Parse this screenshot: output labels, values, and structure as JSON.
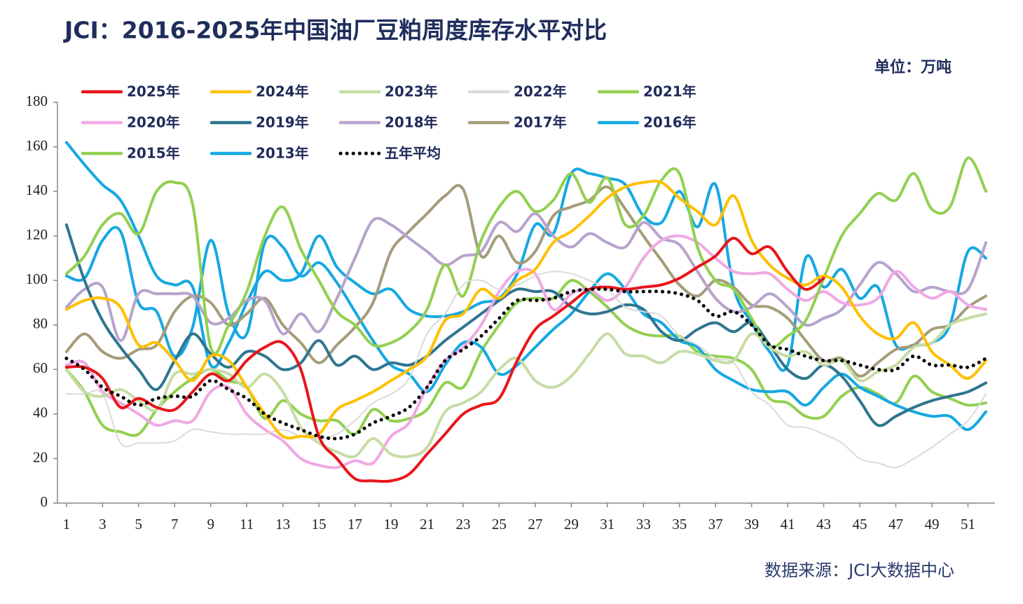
{
  "chart_data": {
    "type": "line",
    "title": "JCI：2016-2025年中国油厂豆粕周度库存水平对比",
    "unit": "单位：万吨",
    "source": "数据来源：JCI大数据中心",
    "x": [
      1,
      2,
      3,
      4,
      5,
      6,
      7,
      8,
      9,
      10,
      11,
      12,
      13,
      14,
      15,
      16,
      17,
      18,
      19,
      20,
      21,
      22,
      23,
      24,
      25,
      26,
      27,
      28,
      29,
      30,
      31,
      32,
      33,
      34,
      35,
      36,
      37,
      38,
      39,
      40,
      41,
      42,
      43,
      44,
      45,
      46,
      47,
      48,
      49,
      50,
      51,
      52
    ],
    "xlim": [
      0.5,
      52.5
    ],
    "xticks": [
      1,
      3,
      5,
      7,
      9,
      11,
      13,
      15,
      17,
      19,
      21,
      23,
      25,
      27,
      29,
      31,
      33,
      35,
      37,
      39,
      41,
      43,
      45,
      47,
      49,
      51
    ],
    "ylim": [
      0,
      180
    ],
    "yticks": [
      0,
      20,
      40,
      60,
      80,
      100,
      120,
      140,
      160,
      180
    ],
    "grid": false,
    "series": [
      {
        "name": "2025年",
        "color": "#e8161b",
        "values": [
          61,
          61,
          56,
          43,
          47,
          43,
          42,
          50,
          58,
          55,
          64,
          70,
          72,
          60,
          30,
          20,
          11,
          10,
          10,
          13,
          22,
          31,
          40,
          44,
          47,
          64,
          78,
          84,
          90,
          96,
          97,
          96,
          97,
          98,
          101,
          106,
          111,
          119,
          112,
          115,
          104,
          96,
          101,
          null,
          null,
          null,
          null,
          null,
          null,
          null,
          null,
          null
        ]
      },
      {
        "name": "2024年",
        "color": "#ffc000",
        "values": [
          87,
          91,
          92,
          88,
          71,
          72,
          64,
          55,
          66,
          64,
          52,
          40,
          30,
          30,
          31,
          42,
          46,
          50,
          55,
          60,
          66,
          82,
          85,
          96,
          92,
          100,
          105,
          117,
          122,
          129,
          137,
          142,
          144,
          144,
          137,
          131,
          125,
          138,
          118,
          107,
          101,
          98,
          102,
          97,
          84,
          76,
          74,
          81,
          68,
          62,
          56,
          64
        ]
      },
      {
        "name": "2023年",
        "color": "#c6dca4",
        "values": [
          60,
          50,
          48,
          51,
          46,
          42,
          58,
          58,
          60,
          58,
          52,
          58,
          50,
          34,
          27,
          23,
          21,
          29,
          22,
          21,
          25,
          41,
          45,
          50,
          60,
          65,
          55,
          52,
          57,
          67,
          76,
          67,
          66,
          63,
          68,
          67,
          64,
          64,
          76,
          70,
          66,
          68,
          62,
          64,
          55,
          59,
          62,
          70,
          72,
          80,
          83,
          85
        ]
      },
      {
        "name": "2022年",
        "color": "#dadada",
        "values": [
          49,
          49,
          49,
          27,
          27,
          27,
          28,
          33,
          32,
          31,
          31,
          31,
          33,
          30,
          29,
          31,
          37,
          45,
          49,
          56,
          76,
          85,
          98,
          100,
          96,
          98,
          102,
          104,
          103,
          100,
          96,
          88,
          86,
          84,
          75,
          71,
          65,
          63,
          50,
          44,
          35,
          34,
          31,
          27,
          20,
          18,
          16,
          20,
          25,
          31,
          37,
          49
        ]
      },
      {
        "name": "2021年",
        "color": "#92d050",
        "values": [
          103,
          111,
          125,
          130,
          121,
          140,
          144,
          134,
          70,
          80,
          95,
          120,
          133,
          114,
          100,
          86,
          80,
          71,
          72,
          77,
          87,
          107,
          93,
          118,
          133,
          140,
          131,
          136,
          148,
          135,
          146,
          125,
          129,
          145,
          148,
          115,
          100,
          96,
          83,
          70,
          75,
          82,
          101,
          120,
          130,
          139,
          136,
          148,
          132,
          133,
          155,
          140
        ]
      },
      {
        "name": "2020年",
        "color": "#f0a8e4",
        "values": [
          62,
          63,
          50,
          45,
          40,
          35,
          37,
          37,
          50,
          52,
          40,
          33,
          28,
          20,
          17,
          16,
          19,
          18,
          30,
          36,
          52,
          64,
          70,
          80,
          95,
          104,
          103,
          87,
          94,
          96,
          91,
          97,
          110,
          118,
          120,
          117,
          110,
          104,
          103,
          103,
          96,
          91,
          95,
          90,
          89,
          92,
          104,
          97,
          92,
          95,
          89,
          87
        ]
      },
      {
        "name": "2019年",
        "color": "#2f7590",
        "values": [
          125,
          100,
          82,
          70,
          60,
          51,
          64,
          76,
          67,
          61,
          68,
          66,
          60,
          63,
          73,
          62,
          66,
          60,
          63,
          62,
          66,
          73,
          79,
          85,
          91,
          96,
          95,
          95,
          88,
          85,
          86,
          89,
          87,
          77,
          73,
          78,
          81,
          77,
          81,
          71,
          60,
          56,
          62,
          57,
          46,
          35,
          39,
          43,
          46,
          48,
          50,
          54
        ]
      },
      {
        "name": "2018年",
        "color": "#b7a3cc",
        "values": [
          88,
          96,
          97,
          73,
          94,
          94,
          94,
          93,
          81,
          83,
          91,
          91,
          76,
          85,
          77,
          92,
          110,
          127,
          125,
          119,
          113,
          107,
          111,
          113,
          126,
          122,
          130,
          120,
          115,
          121,
          117,
          115,
          126,
          119,
          116,
          104,
          92,
          86,
          88,
          94,
          88,
          80,
          83,
          87,
          98,
          108,
          103,
          95,
          97,
          95,
          96,
          117
        ]
      },
      {
        "name": "2017年",
        "color": "#a59c7a",
        "values": [
          68,
          76,
          68,
          65,
          69,
          71,
          86,
          93,
          90,
          80,
          85,
          92,
          80,
          72,
          63,
          71,
          79,
          90,
          113,
          122,
          130,
          138,
          141,
          111,
          120,
          108,
          113,
          129,
          133,
          136,
          142,
          132,
          120,
          109,
          98,
          93,
          100,
          97,
          89,
          88,
          83,
          73,
          64,
          65,
          57,
          63,
          69,
          71,
          78,
          80,
          88,
          93
        ]
      },
      {
        "name": "2016年",
        "color": "#16a8e2",
        "values": [
          102,
          101,
          118,
          122,
          90,
          86,
          66,
          79,
          118,
          85,
          76,
          117,
          115,
          102,
          108,
          99,
          86,
          73,
          62,
          58,
          50,
          62,
          72,
          70,
          58,
          62,
          70,
          78,
          85,
          95,
          103,
          96,
          85,
          81,
          73,
          70,
          60,
          55,
          51,
          50,
          50,
          44,
          52,
          58,
          52,
          48,
          44,
          41,
          39,
          39,
          33,
          41
        ]
      },
      {
        "name": "2015年",
        "color": "#92d050",
        "values": [
          60,
          50,
          35,
          32,
          31,
          42,
          50,
          56,
          60,
          55,
          52,
          38,
          46,
          40,
          37,
          37,
          31,
          42,
          37,
          38,
          42,
          54,
          52,
          68,
          80,
          90,
          92,
          92,
          100,
          95,
          88,
          80,
          76,
          75,
          75,
          68,
          66,
          65,
          60,
          47,
          45,
          39,
          39,
          48,
          52,
          49,
          45,
          57,
          50,
          47,
          44,
          45
        ]
      },
      {
        "name": "2013年",
        "color": "#16a8e2",
        "values": [
          162,
          152,
          143,
          136,
          120,
          102,
          98,
          97,
          62,
          72,
          90,
          104,
          100,
          103,
          120,
          106,
          99,
          94,
          96,
          87,
          84,
          84,
          86,
          90,
          92,
          103,
          125,
          121,
          148,
          148,
          146,
          143,
          129,
          126,
          140,
          124,
          143,
          97,
          81,
          68,
          62,
          110,
          97,
          105,
          92,
          97,
          71,
          71,
          72,
          80,
          113,
          110
        ]
      },
      {
        "name": "五年平均",
        "color": "#000000",
        "dotted": true,
        "values": [
          65,
          60,
          52,
          48,
          44,
          47,
          48,
          48,
          55,
          51,
          47,
          40,
          36,
          33,
          30,
          29,
          31,
          36,
          39,
          43,
          52,
          64,
          69,
          75,
          83,
          91,
          91,
          92,
          95,
          96,
          96,
          95,
          95,
          95,
          94,
          91,
          84,
          86,
          80,
          71,
          69,
          66,
          64,
          64,
          62,
          60,
          60,
          66,
          62,
          62,
          61,
          65
        ]
      }
    ]
  }
}
